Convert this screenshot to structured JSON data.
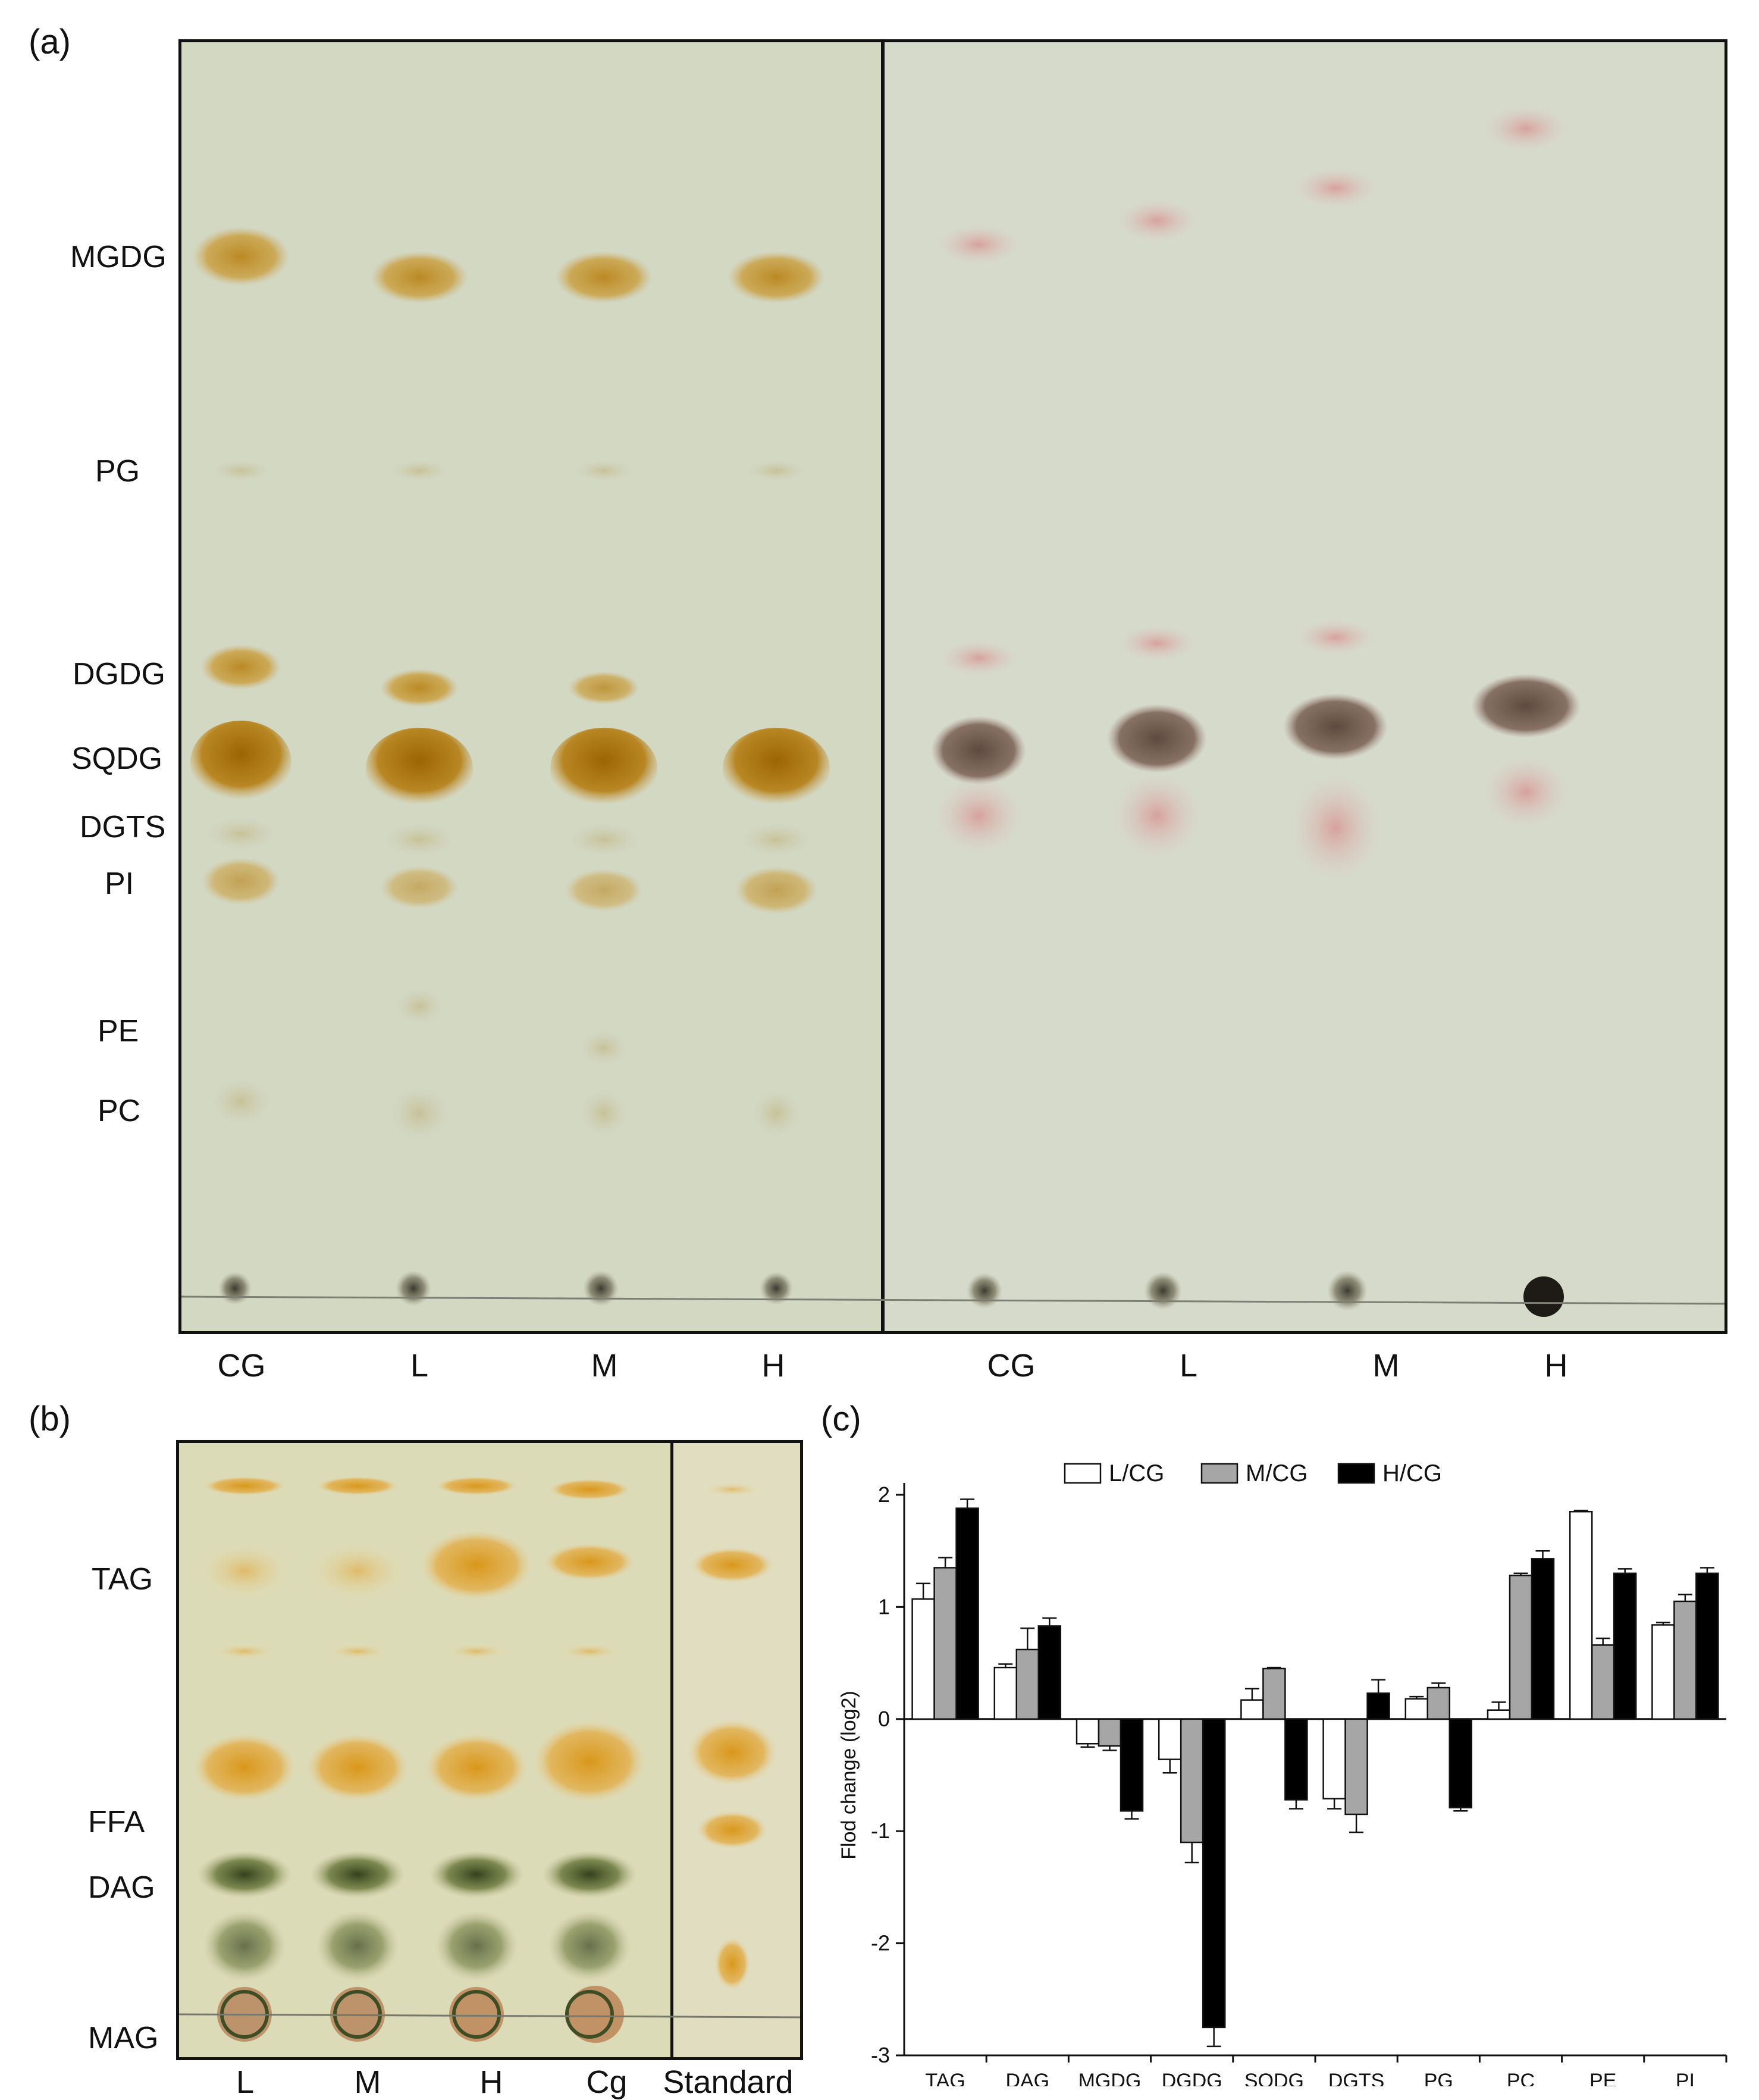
{
  "panels": {
    "a": {
      "letter": "(a)",
      "lipid_labels": [
        "MGDG",
        "PG",
        "DGDG",
        "SQDG",
        "DGTS",
        "PI",
        "PE",
        "PC"
      ],
      "lane_labels": [
        "CG",
        "L",
        "M",
        "H",
        "CG",
        "L",
        "M",
        "H"
      ]
    },
    "b": {
      "letter": "(b)",
      "lipid_labels": [
        "TAG",
        "FFA",
        "DAG",
        "MAG"
      ],
      "lane_labels": [
        "L",
        "M",
        "H",
        "Cg",
        "Standard"
      ]
    },
    "c": {
      "letter": "(c)"
    }
  },
  "colors": {
    "plate_left": "#d3d8c3",
    "plate_right": "#d6dacb",
    "iodine_band": "#c79a2f",
    "iodine_dark": "#a86e0a",
    "charring_pink": "#d9a7a4",
    "charring_brown": "#6b5347",
    "bar_L": "#ffffff",
    "bar_M": "#a6a6a6",
    "bar_H": "#000000"
  },
  "chart_data": {
    "type": "bar",
    "categories": [
      "TAG",
      "DAG",
      "MGDG",
      "DGDG",
      "SQDG",
      "DGTS",
      "PG",
      "PC",
      "PE",
      "PI"
    ],
    "series": [
      {
        "name": "L/CG",
        "values": [
          1.07,
          0.46,
          -0.22,
          -0.36,
          0.17,
          -0.71,
          0.18,
          0.08,
          1.85,
          0.84
        ],
        "errors": [
          0.14,
          0.03,
          0.03,
          0.12,
          0.1,
          0.09,
          0.02,
          0.07,
          0.01,
          0.02
        ]
      },
      {
        "name": "M/CG",
        "values": [
          1.35,
          0.62,
          -0.24,
          -1.1,
          0.45,
          -0.85,
          0.28,
          1.28,
          0.66,
          1.05
        ],
        "errors": [
          0.09,
          0.19,
          0.04,
          0.18,
          0.01,
          0.16,
          0.04,
          0.02,
          0.06,
          0.06
        ]
      },
      {
        "name": "H/CG",
        "values": [
          1.88,
          0.83,
          -0.82,
          -2.75,
          -0.72,
          0.23,
          -0.79,
          1.43,
          1.3,
          1.3
        ],
        "errors": [
          0.08,
          0.07,
          0.07,
          0.17,
          0.08,
          0.12,
          0.03,
          0.07,
          0.04,
          0.05
        ]
      }
    ],
    "ylabel": "Flod change (log2)",
    "xlabel": "",
    "ylim": [
      -3,
      2
    ],
    "yticks": [
      "-3",
      "-2",
      "-1",
      "0",
      "1",
      "2"
    ],
    "legend_position": "top-center",
    "grid": false
  }
}
